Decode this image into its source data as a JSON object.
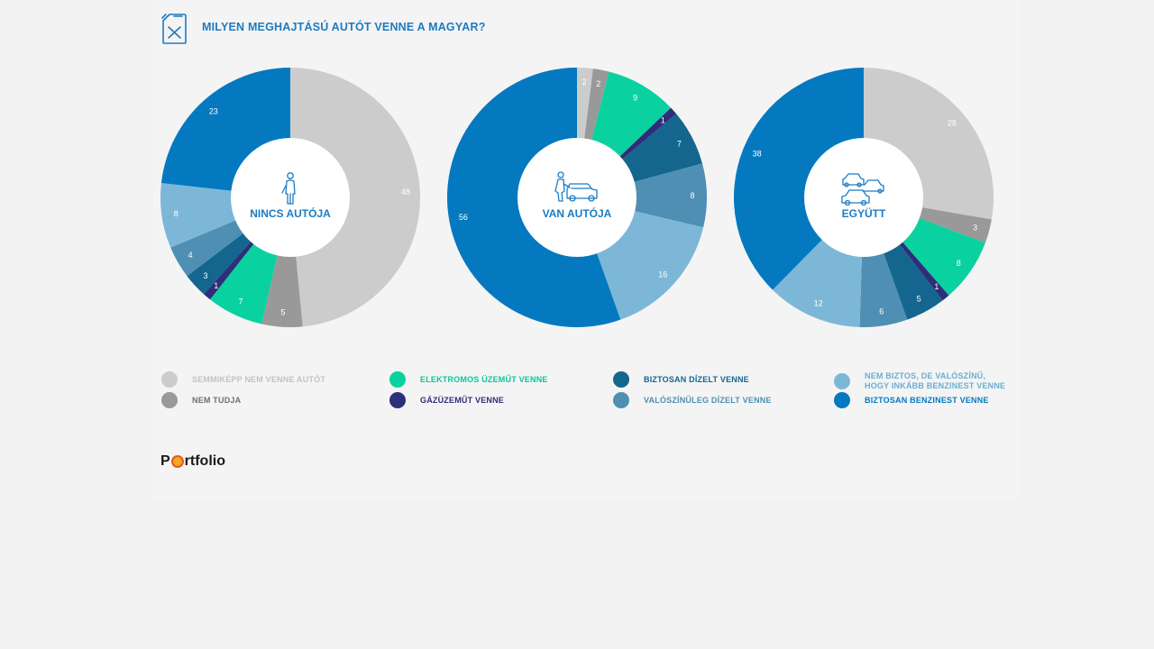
{
  "header": {
    "title": "MILYEN MEGHAJTÁSÚ AUTÓT VENNE A MAGYAR?",
    "icon": "fuel-canister-icon"
  },
  "colors": {
    "semmikepp": "#cccccc",
    "nem_tudja": "#999999",
    "elektromos": "#0ad1a0",
    "gaz": "#2e2e7a",
    "biztosan_dizel": "#14668f",
    "valoszinuleg_dizel": "#4f8fb3",
    "nem_biztos_benzin": "#7db7d8",
    "biztosan_benzin": "#0579c0",
    "center_text": "#1a7cc3"
  },
  "legend": {
    "items": [
      {
        "key": "semmikepp",
        "label": "SEMMIKÉPP NEM VENNE AUTÓT",
        "color": "#cccccc",
        "text_color": "#c2c2c2"
      },
      {
        "key": "nem_tudja",
        "label": "NEM TUDJA",
        "color": "#999999",
        "text_color": "#6f6f6f"
      },
      {
        "key": "elektromos",
        "label": "ELEKTROMOS ÜZEMŰT VENNE",
        "color": "#0ad1a0",
        "text_color": "#0ac79a"
      },
      {
        "key": "gaz",
        "label": "GÁZÜZEMŰT VENNE",
        "color": "#2e2e7a",
        "text_color": "#2e2e7a"
      },
      {
        "key": "biztosan_dizel",
        "label": "BIZTOSAN DÍZELT VENNE",
        "color": "#14668f",
        "text_color": "#14668f"
      },
      {
        "key": "valoszinuleg_dizel",
        "label": "VALÓSZÍNŰLEG DÍZELT VENNE",
        "color": "#4f8fb3",
        "text_color": "#4f8fb3"
      },
      {
        "key": "nem_biztos_benzin",
        "label_line1": "NEM BIZTOS, DE VALÓSZÍNŰ,",
        "label_line2": "HOGY INKÁBB BENZINEST VENNE",
        "color": "#7db7d8",
        "text_color": "#6aaed4"
      },
      {
        "key": "biztosan_benzin",
        "label": "BIZTOSAN BENZINEST VENNE",
        "color": "#0579c0",
        "text_color": "#0579c0"
      }
    ]
  },
  "chart_data": [
    {
      "type": "pie",
      "title": "NINCS AUTÓJA",
      "icon": "person-icon",
      "slices": [
        {
          "name": "SEMMIKÉPP NEM VENNE AUTÓT",
          "value": 48,
          "color": "#cccccc"
        },
        {
          "name": "NEM TUDJA",
          "value": 5,
          "color": "#999999"
        },
        {
          "name": "ELEKTROMOS ÜZEMŰT VENNE",
          "value": 7,
          "color": "#0ad1a0"
        },
        {
          "name": "GÁZÜZEMŰT VENNE",
          "value": 1,
          "color": "#2e2e7a"
        },
        {
          "name": "BIZTOSAN DÍZELT VENNE",
          "value": 3,
          "color": "#14668f"
        },
        {
          "name": "VALÓSZÍNŰLEG DÍZELT VENNE",
          "value": 4,
          "color": "#4f8fb3"
        },
        {
          "name": "NEM BIZTOS, DE VALÓSZÍNŰ, HOGY INKÁBB BENZINEST VENNE",
          "value": 8,
          "color": "#7db7d8"
        },
        {
          "name": "BIZTOSAN BENZINEST VENNE",
          "value": 23,
          "color": "#0579c0"
        }
      ]
    },
    {
      "type": "pie",
      "title": "VAN AUTÓJA",
      "icon": "person-with-car-icon",
      "slices": [
        {
          "name": "SEMMIKÉPP NEM VENNE AUTÓT",
          "value": 2,
          "color": "#cccccc"
        },
        {
          "name": "NEM TUDJA",
          "value": 2,
          "color": "#999999"
        },
        {
          "name": "ELEKTROMOS ÜZEMŰT VENNE",
          "value": 9,
          "color": "#0ad1a0"
        },
        {
          "name": "GÁZÜZEMŰT VENNE",
          "value": 1,
          "color": "#2e2e7a"
        },
        {
          "name": "BIZTOSAN DÍZELT VENNE",
          "value": 7,
          "color": "#14668f"
        },
        {
          "name": "VALÓSZÍNŰLEG DÍZELT VENNE",
          "value": 8,
          "color": "#4f8fb3"
        },
        {
          "name": "NEM BIZTOS, DE VALÓSZÍNŰ, HOGY INKÁBB BENZINEST VENNE",
          "value": 16,
          "color": "#7db7d8"
        },
        {
          "name": "BIZTOSAN BENZINEST VENNE",
          "value": 56,
          "color": "#0579c0"
        }
      ]
    },
    {
      "type": "pie",
      "title": "EGYÜTT",
      "icon": "cars-icon",
      "slices": [
        {
          "name": "SEMMIKÉPP NEM VENNE AUTÓT",
          "value": 28,
          "color": "#cccccc"
        },
        {
          "name": "NEM TUDJA",
          "value": 3,
          "color": "#999999"
        },
        {
          "name": "ELEKTROMOS ÜZEMŰT VENNE",
          "value": 8,
          "color": "#0ad1a0"
        },
        {
          "name": "GÁZÜZEMŰT VENNE",
          "value": 1,
          "color": "#2e2e7a"
        },
        {
          "name": "BIZTOSAN DÍZELT VENNE",
          "value": 5,
          "color": "#14668f"
        },
        {
          "name": "VALÓSZÍNŰLEG DÍZELT VENNE",
          "value": 6,
          "color": "#4f8fb3"
        },
        {
          "name": "NEM BIZTOS, DE VALÓSZÍNŰ, HOGY INKÁBB BENZINEST VENNE",
          "value": 12,
          "color": "#7db7d8"
        },
        {
          "name": "BIZTOSAN BENZINEST VENNE",
          "value": 38,
          "color": "#0579c0"
        }
      ]
    }
  ],
  "logo": {
    "text_p": "P",
    "text_rest": "rtfolio"
  }
}
